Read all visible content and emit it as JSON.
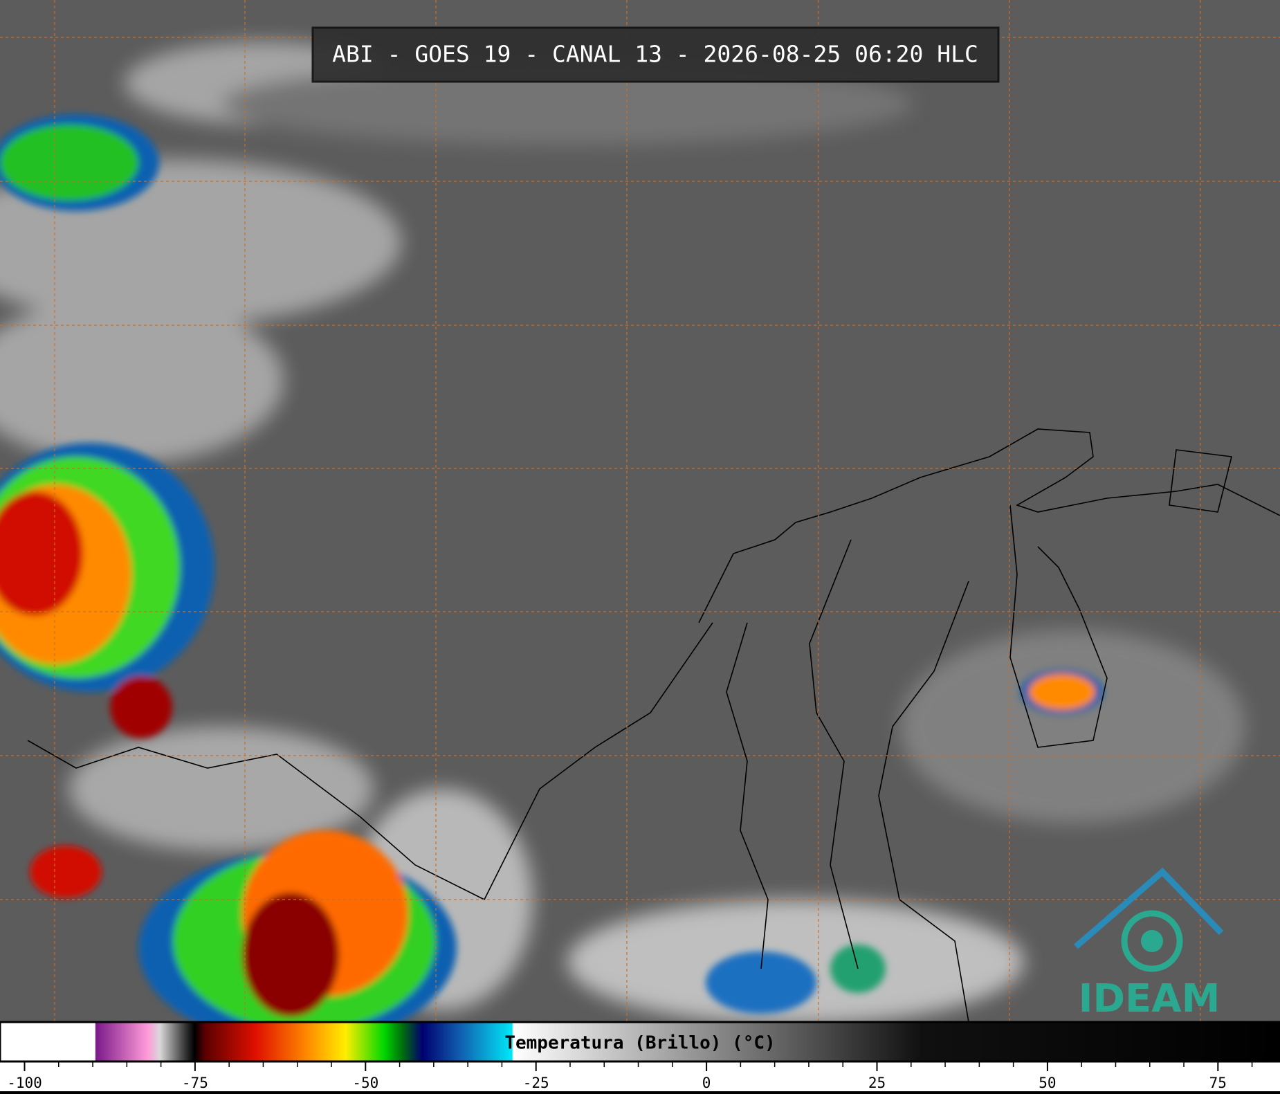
{
  "title": "ABI - GOES 19 - CANAL 13 - 2026-08-25 06:20 HLC",
  "logo": "IDEAM",
  "colorbar": {
    "label": "Temperatura (Brillo) (°C)",
    "xlim": [
      -103.6,
      84.1
    ],
    "xticks": [
      -100,
      -75,
      -50,
      -25,
      0,
      25,
      50,
      75
    ],
    "minor_xticks": [
      -95,
      -90,
      -85,
      -80,
      -70,
      -65,
      -60,
      -55,
      -45,
      -40,
      -35,
      -30,
      -20,
      -15,
      -10,
      -5,
      5,
      10,
      15,
      20,
      30,
      35,
      40,
      45,
      55,
      60,
      65,
      70,
      80
    ]
  }
}
